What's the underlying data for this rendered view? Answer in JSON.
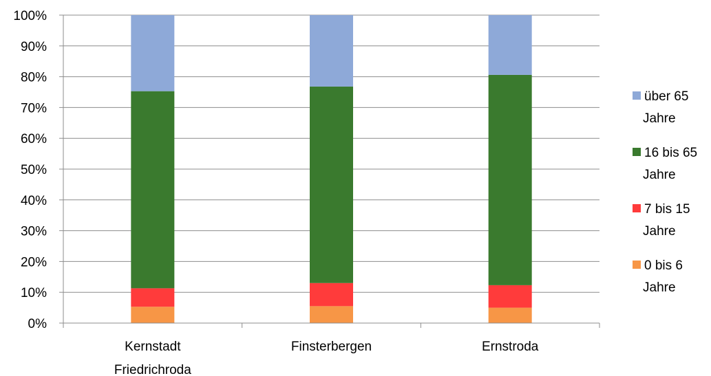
{
  "chart_data": {
    "type": "bar",
    "stacked": true,
    "normalized": true,
    "categories": [
      "Kernstadt Friedrichroda",
      "Finsterbergen",
      "Ernstroda"
    ],
    "series": [
      {
        "name": "0 bis 6 Jahre",
        "color": "#F79646",
        "values": [
          5.3,
          5.5,
          5.0
        ]
      },
      {
        "name": "7 bis 15 Jahre",
        "color": "#FF3B3B",
        "values": [
          6.0,
          7.5,
          7.3
        ]
      },
      {
        "name": "16 bis 65 Jahre",
        "color": "#3A7A2E",
        "values": [
          64.0,
          63.8,
          68.3
        ]
      },
      {
        "name": "über 65 Jahre",
        "color": "#8EA9D8",
        "values": [
          24.7,
          23.2,
          19.4
        ]
      }
    ],
    "yticks": [
      "0%",
      "10%",
      "20%",
      "30%",
      "40%",
      "50%",
      "60%",
      "70%",
      "80%",
      "90%",
      "100%"
    ],
    "ylim": [
      0,
      100
    ],
    "grid": true,
    "legend": "right"
  }
}
